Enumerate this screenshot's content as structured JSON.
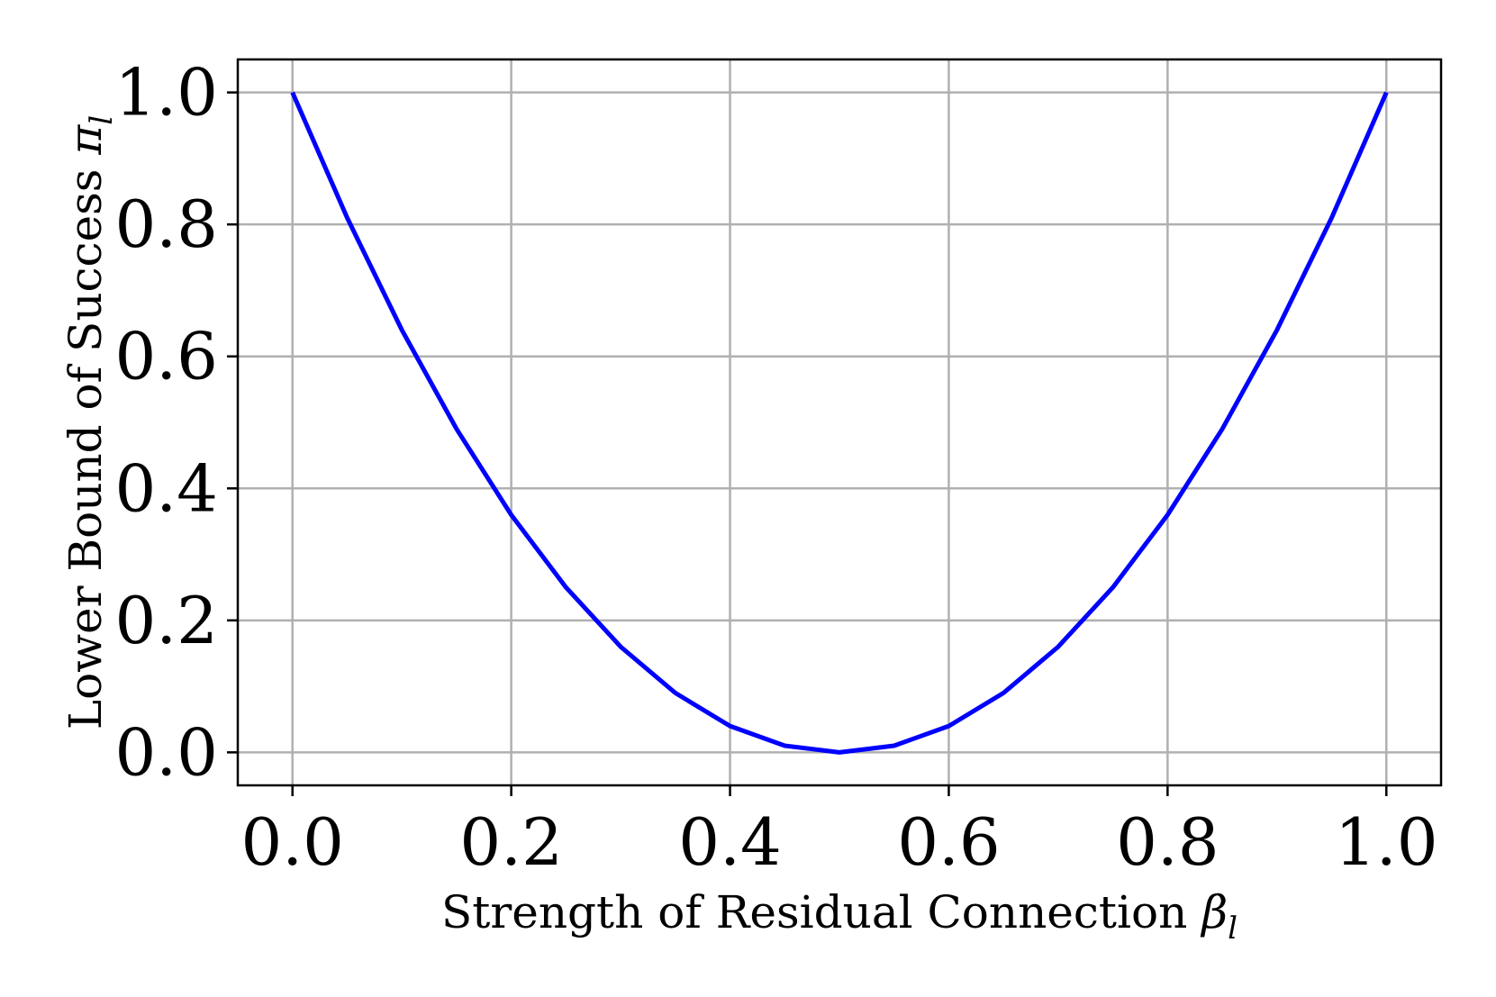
{
  "chart_data": {
    "type": "line",
    "xlabel": {
      "text": "Strength of Residual Connection ",
      "symbol": "β",
      "subscript": "l"
    },
    "ylabel": {
      "text": "Lower Bound of Success ",
      "symbol": "π",
      "subscript": "l"
    },
    "xlim": [
      -0.05,
      1.05
    ],
    "ylim": [
      -0.05,
      1.05
    ],
    "xticks": [
      0.0,
      0.2,
      0.4,
      0.6,
      0.8,
      1.0
    ],
    "yticks": [
      0.0,
      0.2,
      0.4,
      0.6,
      0.8,
      1.0
    ],
    "xtick_labels": [
      "0.0",
      "0.2",
      "0.4",
      "0.6",
      "0.8",
      "1.0"
    ],
    "ytick_labels": [
      "0.0",
      "0.2",
      "0.4",
      "0.6",
      "0.8",
      "1.0"
    ],
    "grid": true,
    "legend": "none",
    "series": [
      {
        "color": "#0000ff",
        "x": [
          0.0,
          0.05,
          0.1,
          0.15,
          0.2,
          0.25,
          0.3,
          0.35,
          0.4,
          0.45,
          0.5,
          0.55,
          0.6,
          0.65,
          0.7,
          0.75,
          0.8,
          0.85,
          0.9,
          0.95,
          1.0
        ],
        "y": [
          1.0,
          0.81,
          0.64,
          0.49,
          0.36,
          0.25,
          0.16,
          0.09,
          0.04,
          0.01,
          0.0,
          0.01,
          0.04,
          0.09,
          0.16,
          0.25,
          0.36,
          0.49,
          0.64,
          0.81,
          1.0
        ]
      }
    ]
  }
}
